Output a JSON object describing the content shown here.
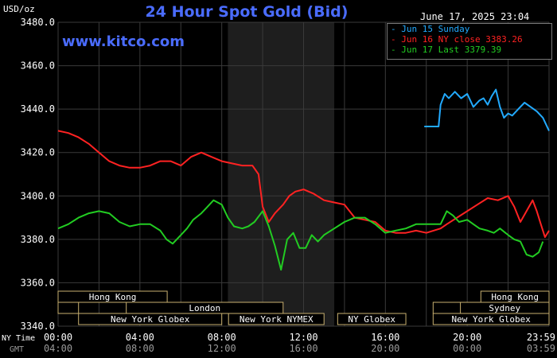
{
  "header": {
    "title": "24 Hour Spot Gold (Bid)",
    "units": "USD/oz",
    "date": "June 17, 2025 23:04",
    "watermark": "www.kitco.com"
  },
  "legend": [
    {
      "label": "- Jun 15 Sunday",
      "color": "#22aaff"
    },
    {
      "label": "- Jun 16 NY close 3383.26",
      "color": "#ff2222"
    },
    {
      "label": "- Jun 17 Last 3379.39",
      "color": "#22cc22"
    }
  ],
  "time_axis": {
    "ny_label": "NY Time",
    "gmt_label": "GMT",
    "ny_ticks": [
      "00:00",
      "04:00",
      "08:00",
      "12:00",
      "16:00",
      "20:00",
      "23:59"
    ],
    "gmt_ticks": [
      "04:00",
      "08:00",
      "12:00",
      "16:00",
      "20:00",
      "00:00",
      "03:59"
    ]
  },
  "sessions": [
    {
      "label": "Hong Kong",
      "start": 0,
      "end": 8
    },
    {
      "label": "",
      "start": 0,
      "end": 1.5
    },
    {
      "label": "London",
      "start": 5,
      "end": 16.5
    },
    {
      "label": "New York Globex",
      "start": 1.5,
      "end": 12
    },
    {
      "label": "New York NYMEX",
      "start": 12.5,
      "end": 19.5
    },
    {
      "label": "NY Globex",
      "start": 20.5,
      "end": 25.5
    },
    {
      "label": "Hong Kong",
      "start": 31,
      "end": 36
    },
    {
      "label": "",
      "start": 27.5,
      "end": 36
    },
    {
      "label": "Sydney",
      "start": 29.5,
      "end": 36
    },
    {
      "label": "New York Globex",
      "start": 27.5,
      "end": 36
    }
  ],
  "chart_data": {
    "type": "line",
    "title": "24 Hour Spot Gold (Bid)",
    "ylabel": "USD/oz",
    "x_unit": "hours (NY time)",
    "xlim": [
      0,
      24
    ],
    "ylim": [
      3340,
      3480
    ],
    "y_ticks": [
      3340,
      3360,
      3380,
      3400,
      3420,
      3440,
      3460,
      3480
    ],
    "grid": true,
    "legend_position": "top-right",
    "shaded_region": [
      8.3,
      13.5
    ],
    "series": [
      {
        "name": "Jun 15 Sunday",
        "color": "#22aaff",
        "points": [
          [
            17.9,
            3432
          ],
          [
            18.6,
            3432
          ],
          [
            18.7,
            3442
          ],
          [
            18.9,
            3447
          ],
          [
            19.1,
            3445
          ],
          [
            19.4,
            3448
          ],
          [
            19.7,
            3445
          ],
          [
            20.0,
            3447
          ],
          [
            20.3,
            3441
          ],
          [
            20.6,
            3444
          ],
          [
            20.8,
            3445
          ],
          [
            21.0,
            3442
          ],
          [
            21.2,
            3446
          ],
          [
            21.4,
            3449
          ],
          [
            21.6,
            3441
          ],
          [
            21.8,
            3436
          ],
          [
            22.0,
            3438
          ],
          [
            22.2,
            3437
          ],
          [
            22.5,
            3440
          ],
          [
            22.8,
            3443
          ],
          [
            23.1,
            3441
          ],
          [
            23.4,
            3439
          ],
          [
            23.7,
            3436
          ],
          [
            24.0,
            3430
          ]
        ]
      },
      {
        "name": "Jun 16 NY close 3383.26",
        "color": "#ff2222",
        "points": [
          [
            0.0,
            3430
          ],
          [
            0.5,
            3429
          ],
          [
            1.0,
            3427
          ],
          [
            1.5,
            3424
          ],
          [
            2.0,
            3420
          ],
          [
            2.5,
            3416
          ],
          [
            3.0,
            3414
          ],
          [
            3.5,
            3413
          ],
          [
            4.0,
            3413
          ],
          [
            4.5,
            3414
          ],
          [
            5.0,
            3416
          ],
          [
            5.5,
            3416
          ],
          [
            6.0,
            3414
          ],
          [
            6.5,
            3418
          ],
          [
            7.0,
            3420
          ],
          [
            7.5,
            3418
          ],
          [
            8.0,
            3416
          ],
          [
            8.5,
            3415
          ],
          [
            9.0,
            3414
          ],
          [
            9.5,
            3414
          ],
          [
            9.8,
            3410
          ],
          [
            10.0,
            3395
          ],
          [
            10.3,
            3388
          ],
          [
            10.6,
            3392
          ],
          [
            11.0,
            3396
          ],
          [
            11.3,
            3400
          ],
          [
            11.6,
            3402
          ],
          [
            12.0,
            3403
          ],
          [
            12.5,
            3401
          ],
          [
            13.0,
            3398
          ],
          [
            13.5,
            3397
          ],
          [
            14.0,
            3396
          ],
          [
            14.5,
            3390
          ],
          [
            15.0,
            3389
          ],
          [
            15.5,
            3388
          ],
          [
            16.0,
            3384
          ],
          [
            16.5,
            3383
          ],
          [
            17.0,
            3383
          ],
          [
            17.5,
            3384
          ],
          [
            18.0,
            3383
          ],
          [
            18.7,
            3385
          ],
          [
            19.0,
            3387
          ],
          [
            19.5,
            3390
          ],
          [
            20.0,
            3393
          ],
          [
            20.5,
            3396
          ],
          [
            21.0,
            3399
          ],
          [
            21.5,
            3398
          ],
          [
            22.0,
            3400
          ],
          [
            22.3,
            3395
          ],
          [
            22.6,
            3388
          ],
          [
            22.9,
            3393
          ],
          [
            23.2,
            3398
          ],
          [
            23.4,
            3393
          ],
          [
            23.6,
            3387
          ],
          [
            23.8,
            3381
          ],
          [
            24.0,
            3384
          ]
        ]
      },
      {
        "name": "Jun 17 Last 3379.39",
        "color": "#22cc22",
        "points": [
          [
            0.0,
            3385
          ],
          [
            0.5,
            3387
          ],
          [
            1.0,
            3390
          ],
          [
            1.5,
            3392
          ],
          [
            2.0,
            3393
          ],
          [
            2.5,
            3392
          ],
          [
            3.0,
            3388
          ],
          [
            3.5,
            3386
          ],
          [
            4.0,
            3387
          ],
          [
            4.5,
            3387
          ],
          [
            5.0,
            3384
          ],
          [
            5.3,
            3380
          ],
          [
            5.6,
            3378
          ],
          [
            6.0,
            3382
          ],
          [
            6.3,
            3385
          ],
          [
            6.6,
            3389
          ],
          [
            7.0,
            3392
          ],
          [
            7.3,
            3395
          ],
          [
            7.6,
            3398
          ],
          [
            8.0,
            3396
          ],
          [
            8.3,
            3390
          ],
          [
            8.6,
            3386
          ],
          [
            9.0,
            3385
          ],
          [
            9.3,
            3386
          ],
          [
            9.6,
            3388
          ],
          [
            10.0,
            3393
          ],
          [
            10.3,
            3386
          ],
          [
            10.6,
            3377
          ],
          [
            10.9,
            3366
          ],
          [
            11.2,
            3380
          ],
          [
            11.5,
            3383
          ],
          [
            11.8,
            3376
          ],
          [
            12.1,
            3376
          ],
          [
            12.4,
            3382
          ],
          [
            12.7,
            3379
          ],
          [
            13.0,
            3382
          ],
          [
            13.5,
            3385
          ],
          [
            14.0,
            3388
          ],
          [
            14.5,
            3390
          ],
          [
            15.0,
            3390
          ],
          [
            15.5,
            3387
          ],
          [
            16.0,
            3383
          ],
          [
            16.5,
            3384
          ],
          [
            17.0,
            3385
          ],
          [
            17.5,
            3387
          ],
          [
            18.0,
            3387
          ],
          [
            18.7,
            3387
          ],
          [
            19.0,
            3393
          ],
          [
            19.3,
            3391
          ],
          [
            19.6,
            3388
          ],
          [
            20.0,
            3389
          ],
          [
            20.3,
            3387
          ],
          [
            20.6,
            3385
          ],
          [
            21.0,
            3384
          ],
          [
            21.3,
            3383
          ],
          [
            21.6,
            3385
          ],
          [
            22.0,
            3382
          ],
          [
            22.3,
            3380
          ],
          [
            22.6,
            3379
          ],
          [
            22.9,
            3373
          ],
          [
            23.2,
            3372
          ],
          [
            23.5,
            3374
          ],
          [
            23.7,
            3379
          ]
        ]
      }
    ]
  }
}
